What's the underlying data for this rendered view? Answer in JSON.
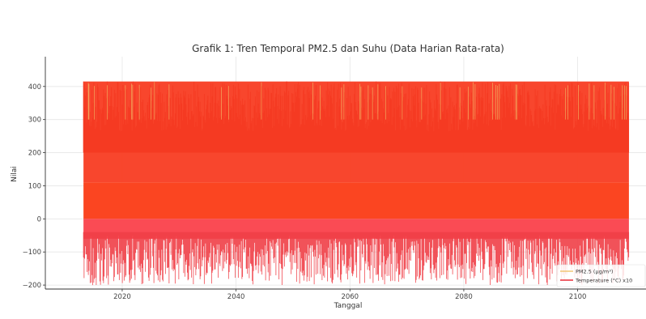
{
  "chart_data": {
    "type": "line",
    "title": "Grafik 1: Tren Temporal PM2.5 dan Suhu (Data Harian Rata-rata)",
    "xlabel": "Tanggal",
    "ylabel": "Nilai",
    "xlim": [
      2006.5,
      2112
    ],
    "ylim": [
      -212,
      490
    ],
    "x_ticks": [
      2020,
      2040,
      2060,
      2080,
      2100
    ],
    "y_ticks": [
      -200,
      -100,
      0,
      100,
      200,
      300,
      400
    ],
    "x_range": [
      2013.2,
      2109
    ],
    "grid": true,
    "legend_position": "bottom-right",
    "series": [
      {
        "name": "PM2.5 (µg/m³)",
        "color": "#f0c36b",
        "pattern": "dense daily noise",
        "band_upper": 415,
        "band_lower": 5
      },
      {
        "name": "Temperature (°C) x10",
        "color": "#e8202a",
        "pattern": "dense daily noise",
        "band_upper": 415,
        "band_lower": -200,
        "core_upper": 110,
        "core_lower": -10
      }
    ]
  }
}
